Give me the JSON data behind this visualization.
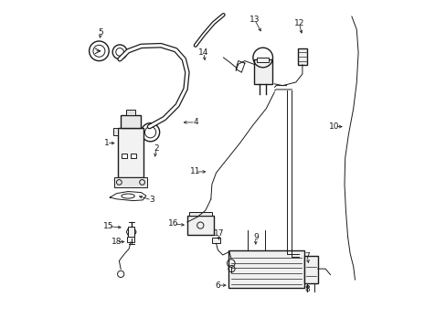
{
  "background_color": "#ffffff",
  "line_color": "#1a1a1a",
  "fig_width": 4.89,
  "fig_height": 3.6,
  "dpi": 100,
  "label_positions": {
    "5": [
      0.125,
      0.895,
      0.125,
      0.855
    ],
    "14": [
      0.44,
      0.835,
      0.44,
      0.8
    ],
    "13": [
      0.595,
      0.935,
      0.595,
      0.895
    ],
    "12": [
      0.73,
      0.925,
      0.73,
      0.885
    ],
    "10": [
      0.845,
      0.615,
      0.875,
      0.615
    ],
    "4": [
      0.415,
      0.625,
      0.375,
      0.625
    ],
    "1": [
      0.145,
      0.565,
      0.185,
      0.565
    ],
    "2": [
      0.295,
      0.545,
      0.295,
      0.51
    ],
    "3": [
      0.28,
      0.395,
      0.235,
      0.395
    ],
    "11": [
      0.42,
      0.475,
      0.46,
      0.475
    ],
    "15": [
      0.155,
      0.31,
      0.195,
      0.31
    ],
    "16": [
      0.35,
      0.315,
      0.395,
      0.315
    ],
    "9": [
      0.6,
      0.275,
      0.6,
      0.245
    ],
    "7": [
      0.76,
      0.215,
      0.76,
      0.185
    ],
    "17": [
      0.485,
      0.285,
      0.485,
      0.255
    ],
    "6": [
      0.485,
      0.13,
      0.515,
      0.13
    ],
    "8": [
      0.755,
      0.12,
      0.755,
      0.145
    ],
    "18": [
      0.18,
      0.26,
      0.215,
      0.26
    ]
  }
}
